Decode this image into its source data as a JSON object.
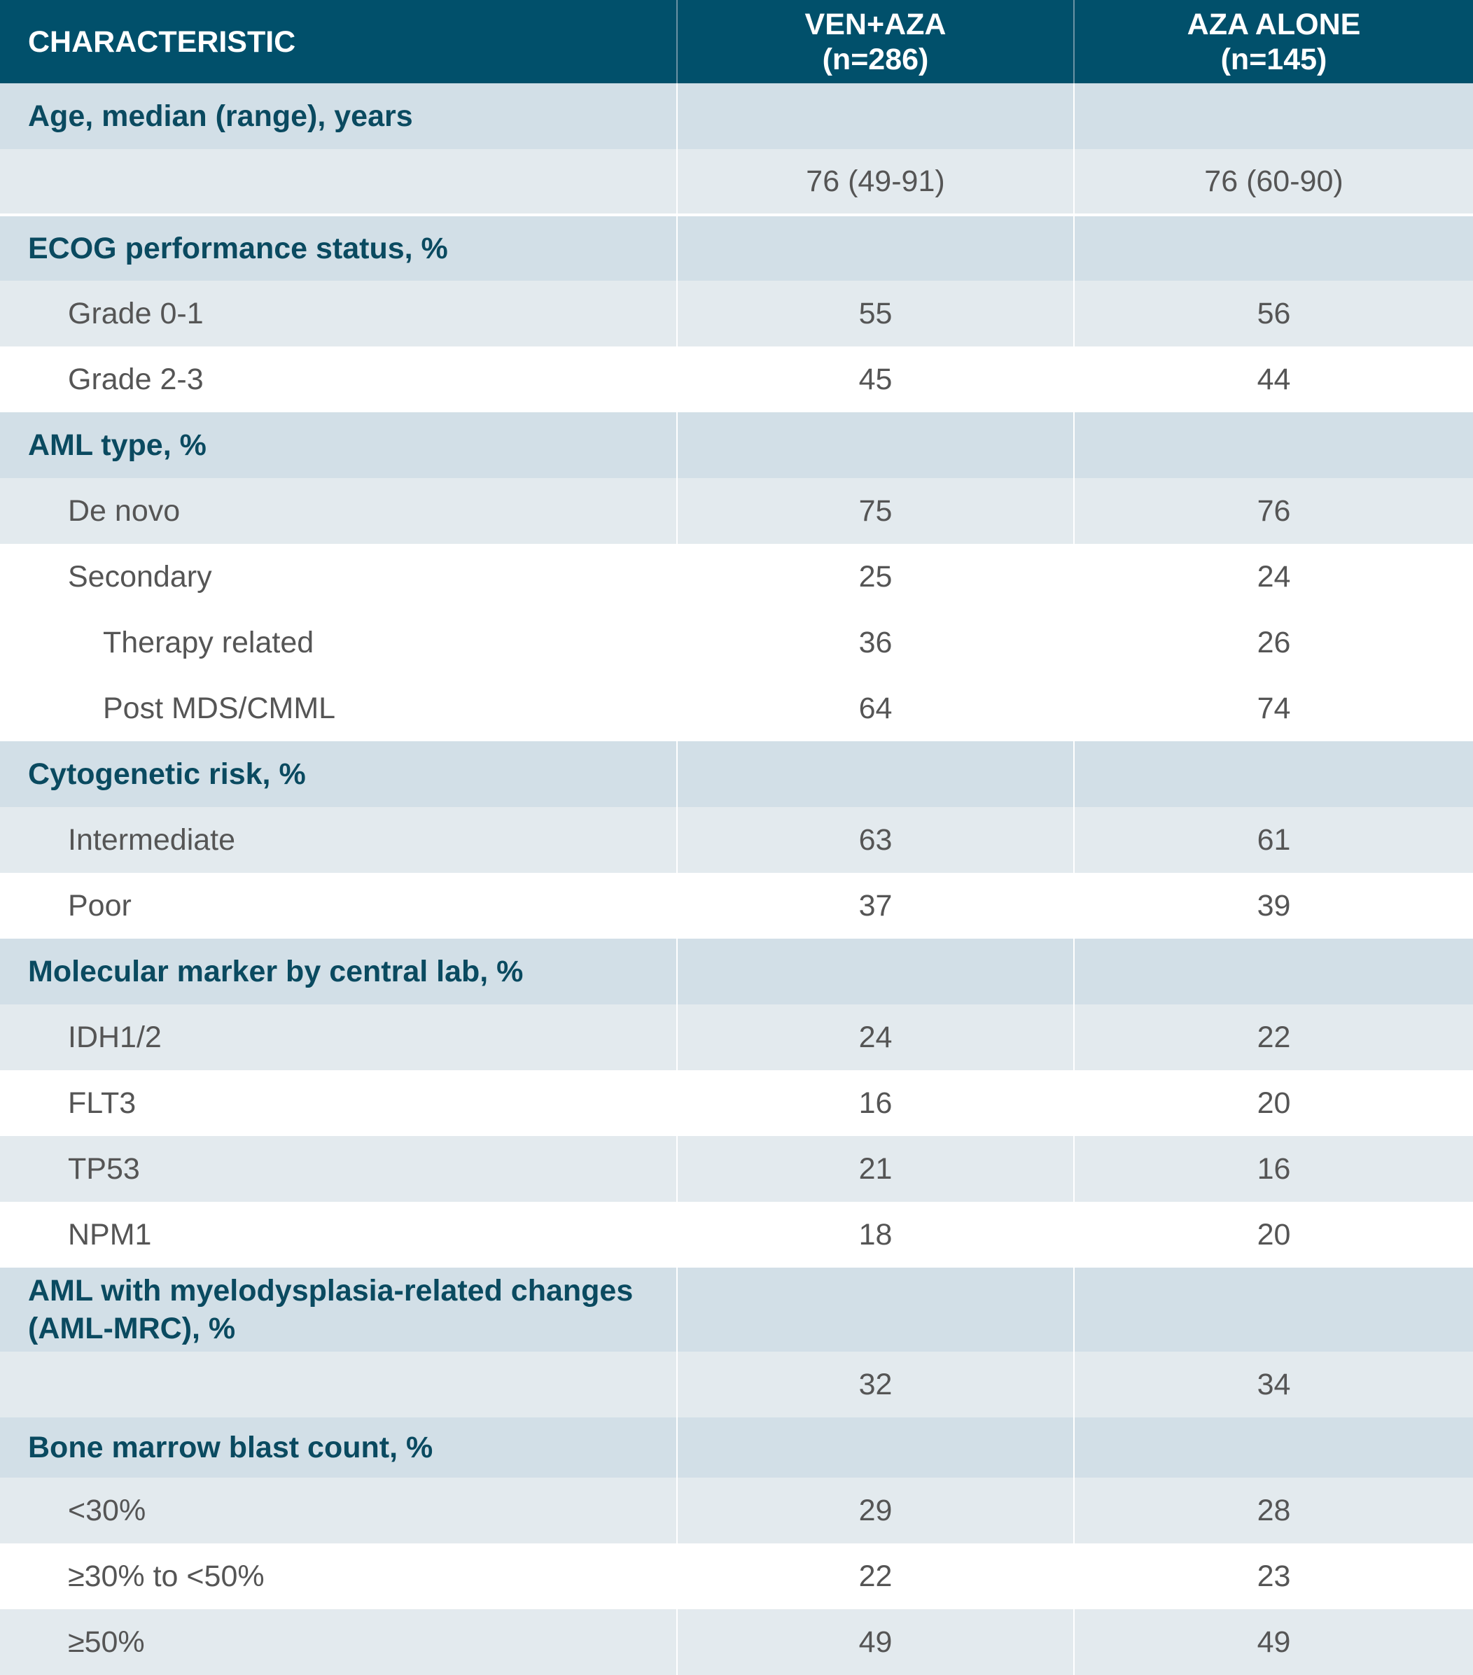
{
  "colors": {
    "header_bg": "#01506b",
    "section_bg": "#d2dfe7",
    "row_light": "#e3eaee",
    "section_text": "#0a4a60"
  },
  "header": {
    "characteristic": "CHARACTERISTIC",
    "col1_line1": "VEN+AZA",
    "col1_line2": "(n=286)",
    "col2_line1": "AZA ALONE",
    "col2_line2": "(n=145)"
  },
  "rows": [
    {
      "type": "section",
      "label": "Age, median (range), years"
    },
    {
      "type": "data",
      "level": 0,
      "shade": "light",
      "label": "",
      "ven_aza": "76 (49-91)",
      "aza": "76 (60-90)"
    },
    {
      "type": "section",
      "label": "ECOG performance status, %",
      "gap": true
    },
    {
      "type": "data",
      "level": 1,
      "shade": "light",
      "label": "Grade 0-1",
      "ven_aza": "55",
      "aza": "56"
    },
    {
      "type": "data",
      "level": 1,
      "shade": "white",
      "label": "Grade 2-3",
      "ven_aza": "45",
      "aza": "44"
    },
    {
      "type": "section",
      "label": "AML type, %"
    },
    {
      "type": "data",
      "level": 1,
      "shade": "light",
      "label": "De novo",
      "ven_aza": "75",
      "aza": "76"
    },
    {
      "type": "data",
      "level": 1,
      "shade": "white",
      "label": "Secondary",
      "ven_aza": "25",
      "aza": "24"
    },
    {
      "type": "data",
      "level": 2,
      "shade": "white",
      "label": "Therapy related",
      "ven_aza": "36",
      "aza": "26"
    },
    {
      "type": "data",
      "level": 2,
      "shade": "white",
      "label": "Post MDS/CMML",
      "ven_aza": "64",
      "aza": "74"
    },
    {
      "type": "section",
      "label": "Cytogenetic risk, %"
    },
    {
      "type": "data",
      "level": 1,
      "shade": "light",
      "label": "Intermediate",
      "ven_aza": "63",
      "aza": "61"
    },
    {
      "type": "data",
      "level": 1,
      "shade": "white",
      "label": "Poor",
      "ven_aza": "37",
      "aza": "39"
    },
    {
      "type": "section",
      "label": "Molecular marker by central lab, %"
    },
    {
      "type": "data",
      "level": 1,
      "shade": "light",
      "label": "IDH1/2",
      "ven_aza": "24",
      "aza": "22"
    },
    {
      "type": "data",
      "level": 1,
      "shade": "white",
      "label": "FLT3",
      "ven_aza": "16",
      "aza": "20"
    },
    {
      "type": "data",
      "level": 1,
      "shade": "light",
      "label": "TP53",
      "ven_aza": "21",
      "aza": "16"
    },
    {
      "type": "data",
      "level": 1,
      "shade": "white",
      "label": "NPM1",
      "ven_aza": "18",
      "aza": "20"
    },
    {
      "type": "section",
      "label": "AML with myelodysplasia-related changes (AML-MRC), %",
      "tall": true
    },
    {
      "type": "data",
      "level": 0,
      "shade": "light",
      "label": "",
      "ven_aza": "32",
      "aza": "34"
    },
    {
      "type": "section",
      "label": "Bone marrow blast count, %",
      "short": true
    },
    {
      "type": "data",
      "level": 1,
      "shade": "light",
      "label": "<30%",
      "ven_aza": "29",
      "aza": "28"
    },
    {
      "type": "data",
      "level": 1,
      "shade": "white",
      "label": "≥30% to <50%",
      "ven_aza": "22",
      "aza": "23"
    },
    {
      "type": "data",
      "level": 1,
      "shade": "light",
      "label": "≥50%",
      "ven_aza": "49",
      "aza": "49"
    }
  ]
}
